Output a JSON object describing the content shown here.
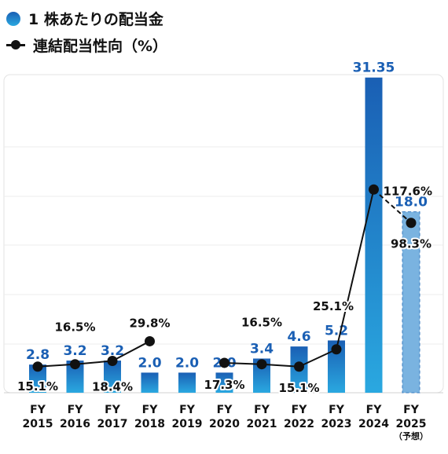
{
  "legend": {
    "bar_label": "1 株あたりの配当金",
    "line_label": "連結配当性向（%）"
  },
  "chart_data": {
    "type": "bar",
    "categories": [
      "FY\n2015",
      "FY\n2016",
      "FY\n2017",
      "FY\n2018",
      "FY\n2019",
      "FY\n2020",
      "FY\n2021",
      "FY\n2022",
      "FY\n2023",
      "FY\n2024",
      "FY\n2025\n（予想）"
    ],
    "category_lines": [
      [
        "FY",
        "2015"
      ],
      [
        "FY",
        "2016"
      ],
      [
        "FY",
        "2017"
      ],
      [
        "FY",
        "2018"
      ],
      [
        "FY",
        "2019"
      ],
      [
        "FY",
        "2020"
      ],
      [
        "FY",
        "2021"
      ],
      [
        "FY",
        "2022"
      ],
      [
        "FY",
        "2023"
      ],
      [
        "FY",
        "2024"
      ],
      [
        "FY",
        "2025",
        "（予想）"
      ]
    ],
    "series": [
      {
        "name": "1 株あたりの配当金",
        "type": "bar",
        "values": [
          2.8,
          3.2,
          3.2,
          2.0,
          2.0,
          2.0,
          3.4,
          4.6,
          5.2,
          31.35,
          18.0
        ],
        "labels": [
          "2.8",
          "3.2",
          "3.2",
          "2.0",
          "2.0",
          "2.0",
          "3.4",
          "4.6",
          "5.2",
          "31.35",
          "18.0"
        ],
        "forecast_index": 10,
        "colors": {
          "top": "#1a5fb4",
          "bottom": "#2aa8e0",
          "forecast": "#7ab3e0",
          "label": "#1a5fb4"
        }
      },
      {
        "name": "連結配当性向（%）",
        "type": "line",
        "values": [
          15.1,
          16.5,
          18.4,
          29.8,
          null,
          17.3,
          16.5,
          15.1,
          25.1,
          117.6,
          98.3
        ],
        "labels": [
          "15.1%",
          "16.5%",
          "18.4%",
          "29.8%",
          "",
          "17.3%",
          "16.5%",
          "15.1%",
          "25.1%",
          "117.6%",
          "98.3%"
        ],
        "dashed_from_index": 9,
        "color": "#111111"
      }
    ],
    "grid": true
  }
}
